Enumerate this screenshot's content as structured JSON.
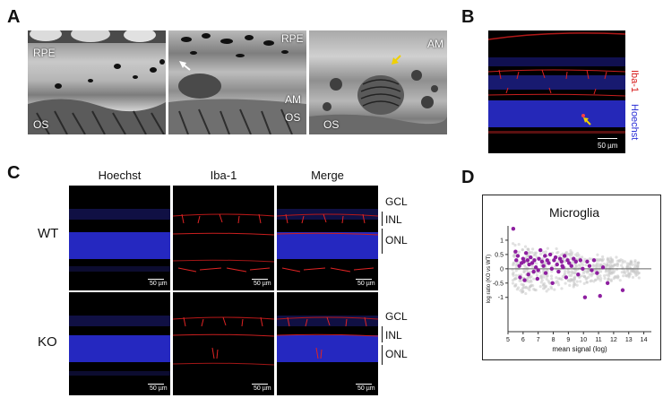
{
  "panels": {
    "A": {
      "label": "A",
      "images": [
        {
          "labels": [
            "RPE",
            "OS"
          ]
        },
        {
          "labels": [
            "RPE",
            "AM",
            "OS"
          ]
        },
        {
          "labels": [
            "AM",
            "OS"
          ]
        }
      ]
    },
    "B": {
      "label": "B",
      "stain_label": "Iba-1",
      "nuclear_label": "Hoechst",
      "scale_bar": "50 µm"
    },
    "C": {
      "label": "C",
      "columns": [
        "Hoechst",
        "Iba-1",
        "Merge"
      ],
      "rows": [
        "WT",
        "KO"
      ],
      "layers": [
        "GCL",
        "INL",
        "ONL"
      ],
      "scale_bar": "50 µm"
    },
    "D": {
      "label": "D"
    }
  },
  "colors": {
    "stain": "#d81b1b",
    "nuclear": "#2a2fd6",
    "points": "#8e1fa0",
    "faint_points": "#c8c8c8",
    "fit_line": "#666666"
  },
  "chart_data": {
    "type": "scatter",
    "title": "Microglia",
    "xlabel": "mean signal (log)",
    "ylabel": "log ratio (KO vs WT)",
    "xlim": [
      5,
      14.5
    ],
    "ylim": [
      -2.2,
      1.5
    ],
    "xticks": [
      5,
      6,
      7,
      8,
      9,
      10,
      11,
      12,
      13,
      14
    ],
    "yticks": [
      1,
      0.5,
      0,
      -0.5,
      -1
    ],
    "series": [
      {
        "values": [
          [
            5.35,
            1.4
          ],
          [
            5.5,
            0.6
          ],
          [
            5.55,
            0.3
          ],
          [
            5.65,
            0.45
          ],
          [
            5.75,
            0.1
          ],
          [
            5.8,
            -0.3
          ],
          [
            5.9,
            0.2
          ],
          [
            6.0,
            0.35
          ],
          [
            6.05,
            0.25
          ],
          [
            6.1,
            -0.4
          ],
          [
            6.2,
            0.55
          ],
          [
            6.3,
            0.3
          ],
          [
            6.4,
            0.15
          ],
          [
            6.5,
            0.4
          ],
          [
            6.6,
            0.2
          ],
          [
            6.7,
            -0.1
          ],
          [
            6.75,
            0.3
          ],
          [
            6.85,
            0.05
          ],
          [
            6.95,
            -0.35
          ],
          [
            7.05,
            0.35
          ],
          [
            7.15,
            0.65
          ],
          [
            7.25,
            0.25
          ],
          [
            7.35,
            0.1
          ],
          [
            7.45,
            0.45
          ],
          [
            7.5,
            -0.15
          ],
          [
            7.6,
            0.3
          ],
          [
            7.7,
            0.2
          ],
          [
            7.8,
            0.5
          ],
          [
            7.9,
            0.0
          ],
          [
            7.95,
            -0.5
          ],
          [
            8.05,
            0.3
          ],
          [
            8.15,
            0.4
          ],
          [
            8.25,
            0.15
          ],
          [
            8.35,
            -0.1
          ],
          [
            8.45,
            0.35
          ],
          [
            8.55,
            0.25
          ],
          [
            8.65,
            0.05
          ],
          [
            8.75,
            0.45
          ],
          [
            8.85,
            -0.3
          ],
          [
            8.95,
            0.3
          ],
          [
            9.05,
            0.2
          ],
          [
            9.2,
            0.1
          ],
          [
            9.35,
            0.35
          ],
          [
            9.5,
            0.25
          ],
          [
            9.65,
            -0.2
          ],
          [
            9.8,
            0.3
          ],
          [
            9.95,
            0.0
          ],
          [
            10.1,
            -1.0
          ],
          [
            10.25,
            0.25
          ],
          [
            10.4,
            0.1
          ],
          [
            10.55,
            -0.05
          ],
          [
            10.7,
            0.3
          ],
          [
            10.9,
            -0.15
          ],
          [
            11.1,
            -0.95
          ],
          [
            11.3,
            0.05
          ],
          [
            11.6,
            -0.5
          ],
          [
            12.6,
            -0.75
          ],
          [
            6.35,
            -0.2
          ],
          [
            7.0,
            -0.05
          ],
          [
            8.6,
            0.1
          ]
        ]
      }
    ]
  }
}
